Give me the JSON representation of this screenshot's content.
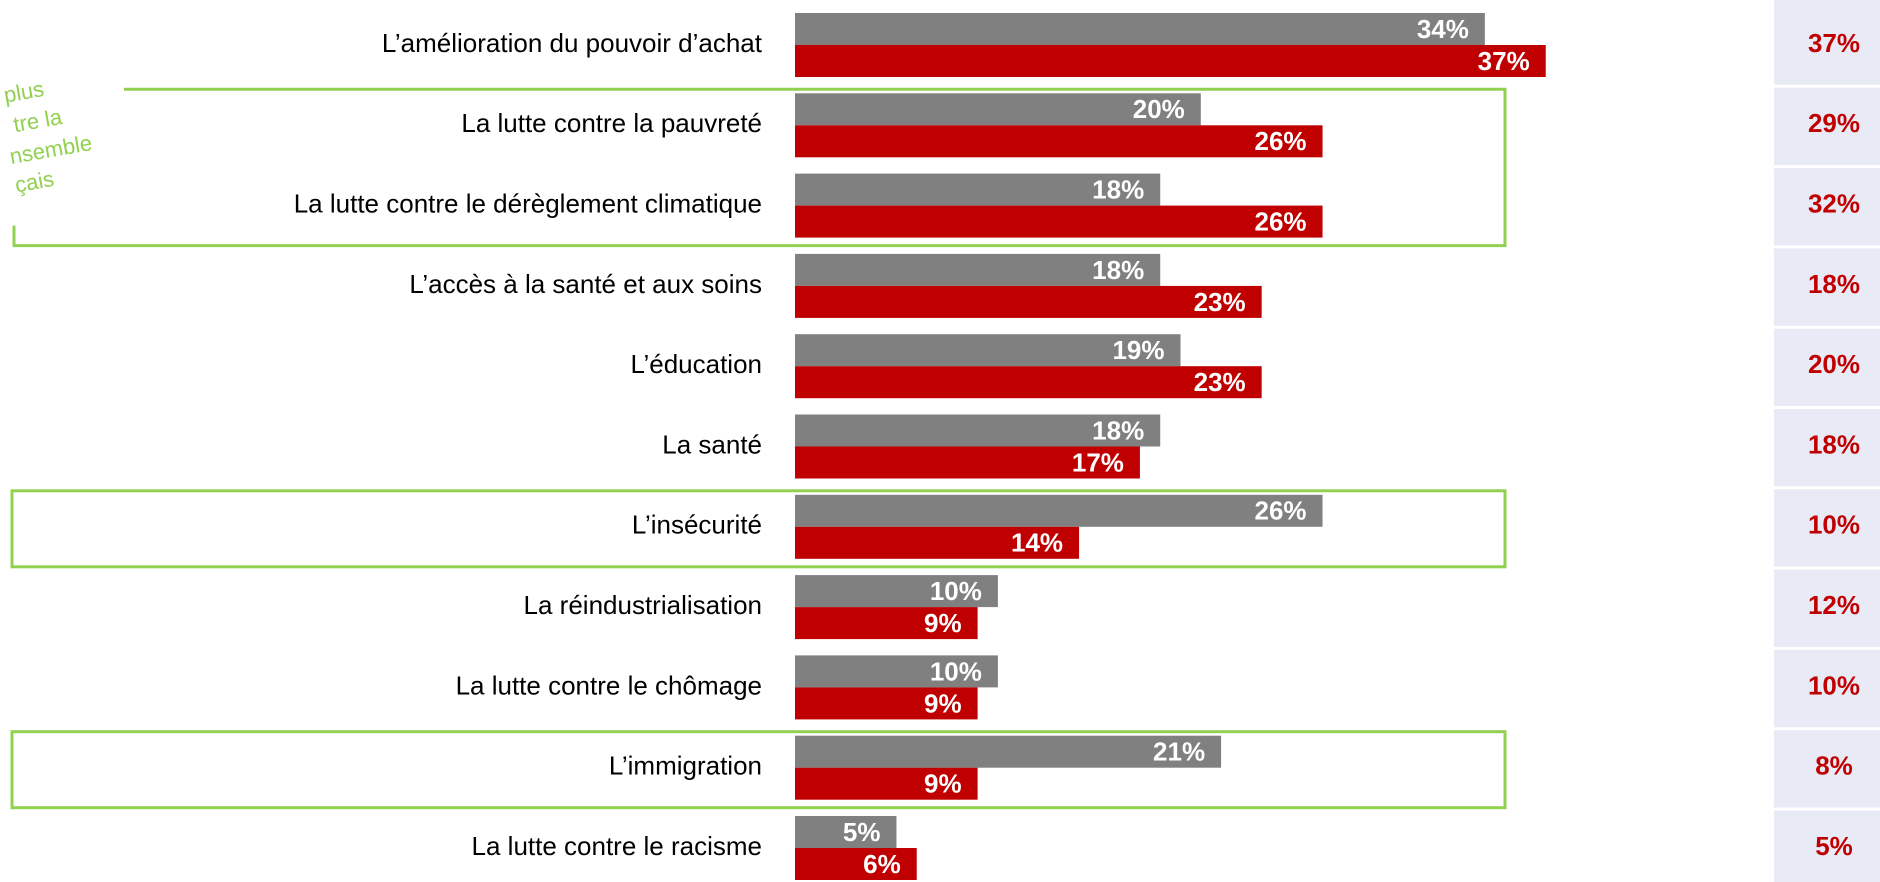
{
  "chart_data": {
    "type": "bar",
    "orientation": "horizontal",
    "categories": [
      "L’amélioration du pouvoir d’achat",
      "La lutte contre la pauvreté",
      "La lutte contre le dérèglement climatique",
      "L’accès à la santé et aux soins",
      "L’éducation",
      "La santé",
      "L’insécurité",
      "La réindustrialisation",
      "La lutte contre le chômage",
      "L’immigration",
      "La lutte contre le racisme"
    ],
    "series": [
      {
        "color": "#808080",
        "values": [
          34,
          20,
          18,
          18,
          19,
          18,
          26,
          10,
          10,
          21,
          5
        ],
        "value_labels": [
          "34%",
          "20%",
          "18%",
          "18%",
          "19%",
          "18%",
          "26%",
          "10%",
          "10%",
          "21%",
          "5%"
        ]
      },
      {
        "color": "#c00000",
        "values": [
          37,
          26,
          26,
          23,
          23,
          17,
          14,
          9,
          9,
          9,
          6
        ],
        "value_labels": [
          "37%",
          "26%",
          "26%",
          "23%",
          "23%",
          "17%",
          "14%",
          "9%",
          "9%",
          "9%",
          "6%"
        ]
      }
    ],
    "side_column": {
      "color": "#c00000",
      "values": [
        37,
        29,
        32,
        18,
        20,
        18,
        10,
        12,
        10,
        8,
        5
      ],
      "value_labels": [
        "37%",
        "29%",
        "32%",
        "18%",
        "20%",
        "18%",
        "10%",
        "12%",
        "10%",
        "8%",
        "5%"
      ]
    },
    "highlight_color": "#92d050",
    "highlight_groups": [
      [
        1,
        2
      ],
      [
        6
      ],
      [
        9
      ]
    ],
    "annotation": [
      "plus",
      "tre la",
      "nsemble",
      "çais"
    ]
  }
}
